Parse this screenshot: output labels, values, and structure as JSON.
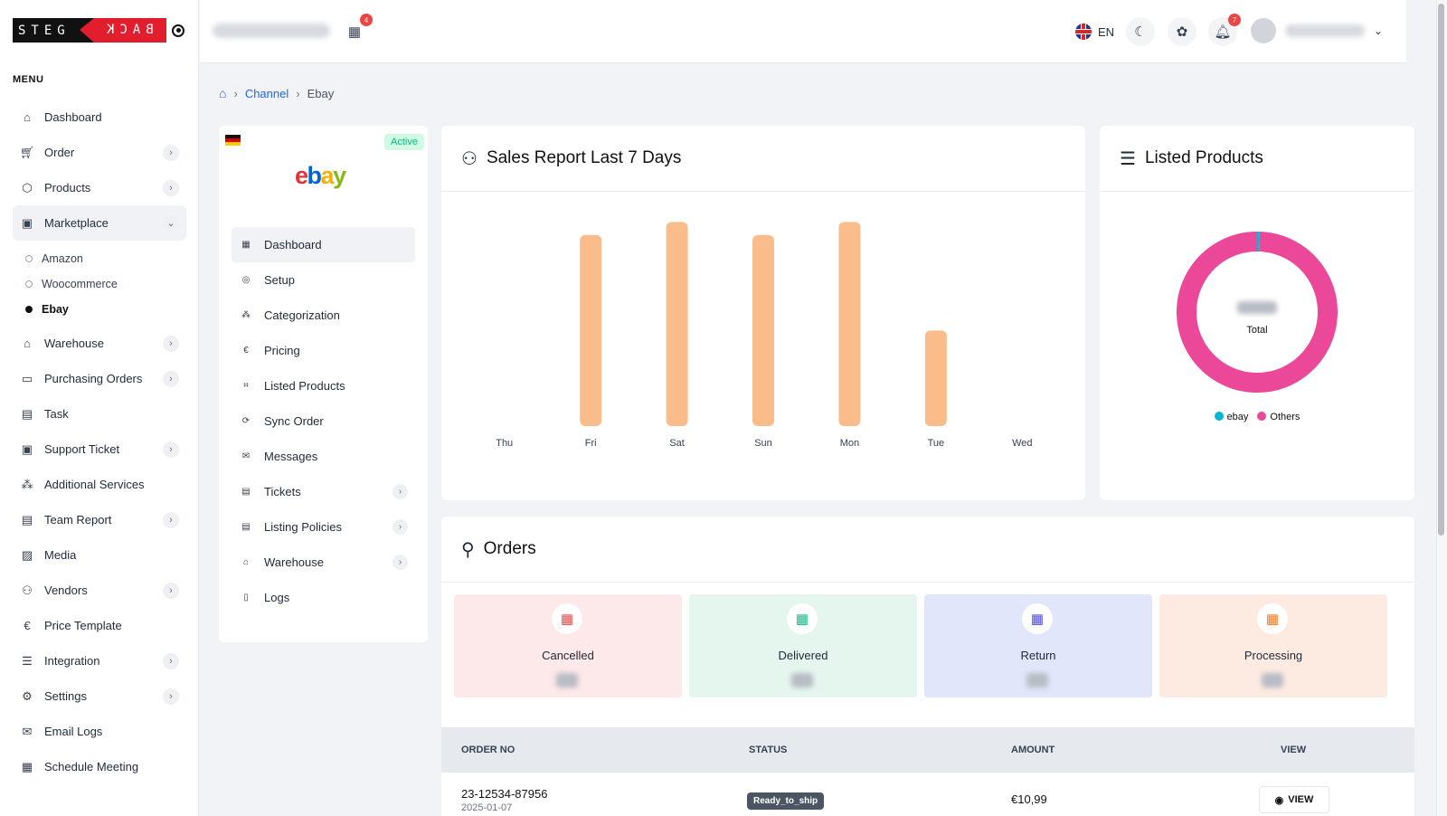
{
  "sidebar": {
    "logo_left": "STEG",
    "logo_right": "BACK",
    "menu_title": "MENU",
    "items": [
      {
        "label": "Dashboard",
        "icon": "home-icon",
        "chevron": false
      },
      {
        "label": "Order",
        "icon": "cart-icon",
        "chevron": true
      },
      {
        "label": "Products",
        "icon": "box-icon",
        "chevron": true
      },
      {
        "label": "Marketplace",
        "icon": "bag-icon",
        "chevron": true,
        "expanded": true
      },
      {
        "label": "Warehouse",
        "icon": "warehouse-icon",
        "chevron": true
      },
      {
        "label": "Purchasing Orders",
        "icon": "purchase-icon",
        "chevron": true
      },
      {
        "label": "Task",
        "icon": "clipboard-icon",
        "chevron": false
      },
      {
        "label": "Support Ticket",
        "icon": "support-icon",
        "chevron": true
      },
      {
        "label": "Additional Services",
        "icon": "services-icon",
        "chevron": false
      },
      {
        "label": "Team Report",
        "icon": "report-icon",
        "chevron": true
      },
      {
        "label": "Media",
        "icon": "media-icon",
        "chevron": false
      },
      {
        "label": "Vendors",
        "icon": "vendors-icon",
        "chevron": true
      },
      {
        "label": "Price Template",
        "icon": "euro-icon",
        "chevron": false
      },
      {
        "label": "Integration",
        "icon": "integration-icon",
        "chevron": true
      },
      {
        "label": "Settings",
        "icon": "gear-icon",
        "chevron": true
      },
      {
        "label": "Email Logs",
        "icon": "mail-icon",
        "chevron": false
      },
      {
        "label": "Schedule Meeting",
        "icon": "calendar-icon",
        "chevron": false
      }
    ],
    "marketplace_sub": [
      "Amazon",
      "Woocommerce",
      "Ebay"
    ]
  },
  "header": {
    "notification_count_store": "4",
    "language": "EN",
    "notification_count": "7"
  },
  "breadcrumb": {
    "channel": "Channel",
    "current": "Ebay"
  },
  "channel": {
    "status": "Active",
    "logo_letters": [
      "e",
      "b",
      "a",
      "y"
    ],
    "nav": [
      {
        "label": "Dashboard",
        "icon": "grid-icon",
        "chevron": false
      },
      {
        "label": "Setup",
        "icon": "setup-icon",
        "chevron": false
      },
      {
        "label": "Categorization",
        "icon": "hierarchy-icon",
        "chevron": false
      },
      {
        "label": "Pricing",
        "icon": "euro-icon",
        "chevron": false
      },
      {
        "label": "Listed Products",
        "icon": "tag-icon",
        "chevron": false
      },
      {
        "label": "Sync Order",
        "icon": "sync-icon",
        "chevron": false
      },
      {
        "label": "Messages",
        "icon": "mail-icon",
        "chevron": false
      },
      {
        "label": "Tickets",
        "icon": "ticket-icon",
        "chevron": true
      },
      {
        "label": "Listing Policies",
        "icon": "policy-icon",
        "chevron": true
      },
      {
        "label": "Warehouse",
        "icon": "warehouse-icon",
        "chevron": true
      },
      {
        "label": "Logs",
        "icon": "file-icon",
        "chevron": false
      }
    ]
  },
  "sales_report": {
    "title": "Sales Report Last 7 Days"
  },
  "chart_data": {
    "type": "bar",
    "categories": [
      "Thu",
      "Fri",
      "Sat",
      "Sun",
      "Mon",
      "Tue",
      "Wed"
    ],
    "values": [
      0,
      88,
      94,
      88,
      94,
      44,
      0
    ],
    "ylim": [
      0,
      100
    ],
    "color": "#fbbc8b",
    "grid": false
  },
  "listed_products": {
    "title": "Listed Products",
    "center_label": "Total",
    "legend": [
      {
        "name": "ebay",
        "color": "#06b6d4",
        "value": 0.5
      },
      {
        "name": "Others",
        "color": "#ec4899",
        "value": 99.5
      }
    ]
  },
  "orders": {
    "title": "Orders",
    "stats": [
      {
        "label": "Cancelled",
        "bg": "#fde8ea",
        "icon_color": "#ef4444"
      },
      {
        "label": "Delivered",
        "bg": "#e5f6ee",
        "icon_color": "#10b981"
      },
      {
        "label": "Return",
        "bg": "#e1e6fb",
        "icon_color": "#4f46e5"
      },
      {
        "label": "Processing",
        "bg": "#fdebe2",
        "icon_color": "#f97316"
      }
    ],
    "columns": {
      "order_no": "ORDER NO",
      "status": "STATUS",
      "amount": "AMOUNT",
      "view": "VIEW"
    },
    "rows": [
      {
        "order_no": "23-12534-87956",
        "date": "2025-01-07",
        "status": "Ready_to_ship",
        "amount": "€10,99",
        "view": "VIEW"
      }
    ]
  }
}
